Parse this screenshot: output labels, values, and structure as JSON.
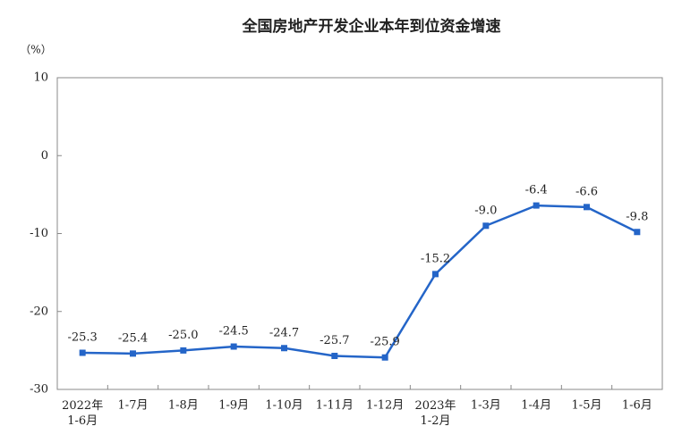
{
  "chart_data": {
    "type": "line",
    "title": "全国房地产开发企业本年到位资金增速",
    "y_unit": "（%）",
    "categories": [
      "2022年\n1-6月",
      "1-7月",
      "1-8月",
      "1-9月",
      "1-10月",
      "1-11月",
      "1-12月",
      "2023年\n1-2月",
      "1-3月",
      "1-4月",
      "1-5月",
      "1-6月"
    ],
    "values": [
      -25.3,
      -25.4,
      -25.0,
      -24.5,
      -24.7,
      -25.7,
      -25.9,
      -15.2,
      -9.0,
      -6.4,
      -6.6,
      -9.8
    ],
    "value_labels": [
      "-25.3",
      "-25.4",
      "-25.0",
      "-24.5",
      "-24.7",
      "-25.7",
      "-25.9",
      "-15.2",
      "-9.0",
      "-6.4",
      "-6.6",
      "-9.8"
    ],
    "color": "#2465c8",
    "ylim": [
      -30,
      10
    ],
    "yticks": [
      10,
      0,
      -10,
      -20,
      -30
    ],
    "grid": false
  }
}
